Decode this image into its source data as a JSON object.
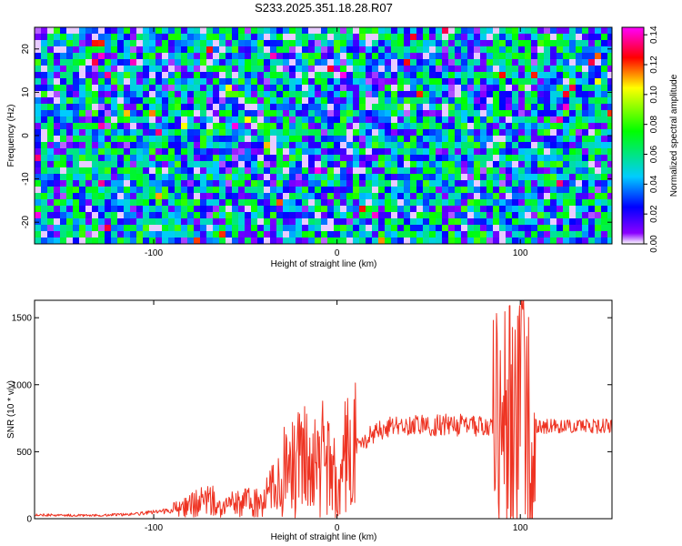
{
  "chart_data": [
    {
      "type": "heatmap",
      "title": "S233.2025.351.18.28.R07",
      "xlabel": "Height of straight line (km)",
      "ylabel": "Frequency (Hz)",
      "xlim": [
        -165,
        150
      ],
      "ylim": [
        -25,
        25
      ],
      "xticks": [
        -100,
        0,
        100
      ],
      "yticks": [
        -20,
        -10,
        0,
        10,
        20
      ],
      "xtick_labels": [
        "-100",
        "0",
        "100"
      ],
      "ytick_labels": [
        "-20",
        "-10",
        "0",
        "10",
        "20"
      ],
      "colorbar": {
        "label": "Normalized spectral amplitude",
        "range": [
          0,
          0.145
        ],
        "ticks": [
          0,
          0.02,
          0.04,
          0.06,
          0.08,
          0.1,
          0.12,
          0.14
        ],
        "tick_labels": [
          "0.00",
          "0.02",
          "0.04",
          "0.06",
          "0.08",
          "0.10",
          "0.12",
          "0.14"
        ],
        "colormap": [
          "#ffffff",
          "#8a00ff",
          "#0000ff",
          "#00ccff",
          "#00ff00",
          "#ffff00",
          "#ff0000",
          "#ff00ff"
        ]
      },
      "note": "dense random speckle field of amplitudes mostly 0.01-0.06, isolated peaks up to ~0.14"
    },
    {
      "type": "line",
      "title": "",
      "xlabel": "Height of straight line (km)",
      "ylabel": "SNR (10 * v/v)",
      "xlim": [
        -165,
        150
      ],
      "ylim": [
        0,
        1630
      ],
      "xticks": [
        -100,
        0,
        100
      ],
      "yticks": [
        0,
        500,
        1000,
        1500
      ],
      "xtick_labels": [
        "-100",
        "0",
        "100"
      ],
      "ytick_labels": [
        "0",
        "500",
        "1000",
        "1500"
      ],
      "series": [
        {
          "name": "SNR",
          "color": "#ee3322",
          "x": [
            -165,
            -150,
            -130,
            -110,
            -90,
            -80,
            -70,
            -60,
            -50,
            -45,
            -40,
            -35,
            -30,
            -25,
            -20,
            -15,
            -10,
            -5,
            0,
            5,
            10,
            15,
            20,
            30,
            40,
            50,
            60,
            70,
            80,
            85,
            90,
            95,
            100,
            105,
            108,
            115,
            130,
            150
          ],
          "values": [
            30,
            25,
            25,
            35,
            60,
            100,
            140,
            100,
            120,
            120,
            150,
            220,
            350,
            350,
            420,
            420,
            440,
            450,
            250,
            480,
            530,
            580,
            640,
            690,
            700,
            700,
            700,
            700,
            690,
            700,
            680,
            700,
            680,
            680,
            690,
            690,
            690,
            690
          ]
        }
      ]
    }
  ]
}
